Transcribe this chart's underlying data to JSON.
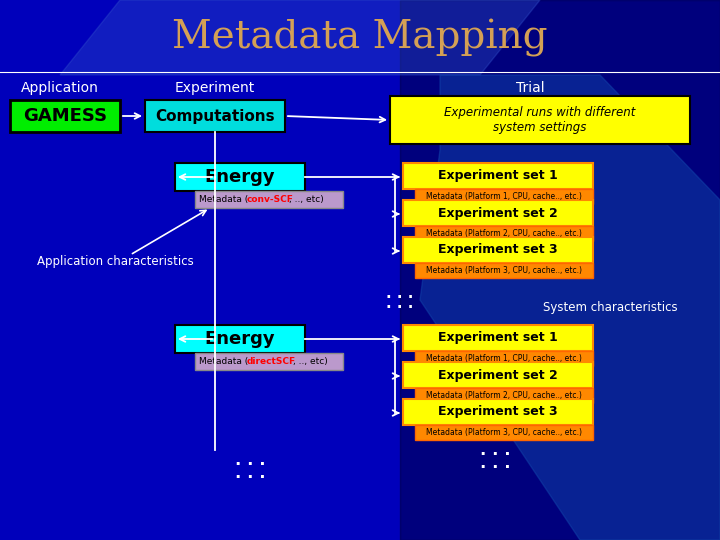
{
  "title": "Metadata Mapping",
  "title_color": "#D4A055",
  "title_fontsize": 28,
  "bg_color": "#0000BB",
  "col1_label": "Application",
  "col2_label": "Experiment",
  "col3_label": "Trial",
  "gamess_text": "GAMESS",
  "gamess_bg": "#00EE00",
  "gamess_border": "#000000",
  "computations_text": "Computations",
  "computations_bg": "#00DDDD",
  "computations_border": "#000000",
  "trial_text": "Experimental runs with different\nsystem settings",
  "trial_bg": "#FFFF00",
  "trial_border": "#000000",
  "energy_text": "Energy",
  "energy_bg": "#00FFFF",
  "energy_border": "#000000",
  "meta1_text": "Metadata (conv-SCF, .., etc)",
  "meta1_bg": "#CC99BB",
  "meta2_text": "Metadata (directSCF, .., etc)",
  "meta2_bg": "#CC99BB",
  "app_char_text": "Application characteristics",
  "sys_char_text": "System characteristics",
  "exp_sets": [
    "Experiment set 1",
    "Experiment set 2",
    "Experiment set 3"
  ],
  "exp_meta": [
    "Metadata (Platform 1, CPU, cache.., etc.)",
    "Metadata (Platform 2, CPU, cache.., etc.)",
    "Metadata (Platform 3, CPU, cache.., etc.)"
  ],
  "exp_set_bg": "#FFFF00",
  "exp_meta_bg": "#FF8800",
  "exp_set_border": "#FF8800",
  "exp_meta_border": "#FF6600"
}
